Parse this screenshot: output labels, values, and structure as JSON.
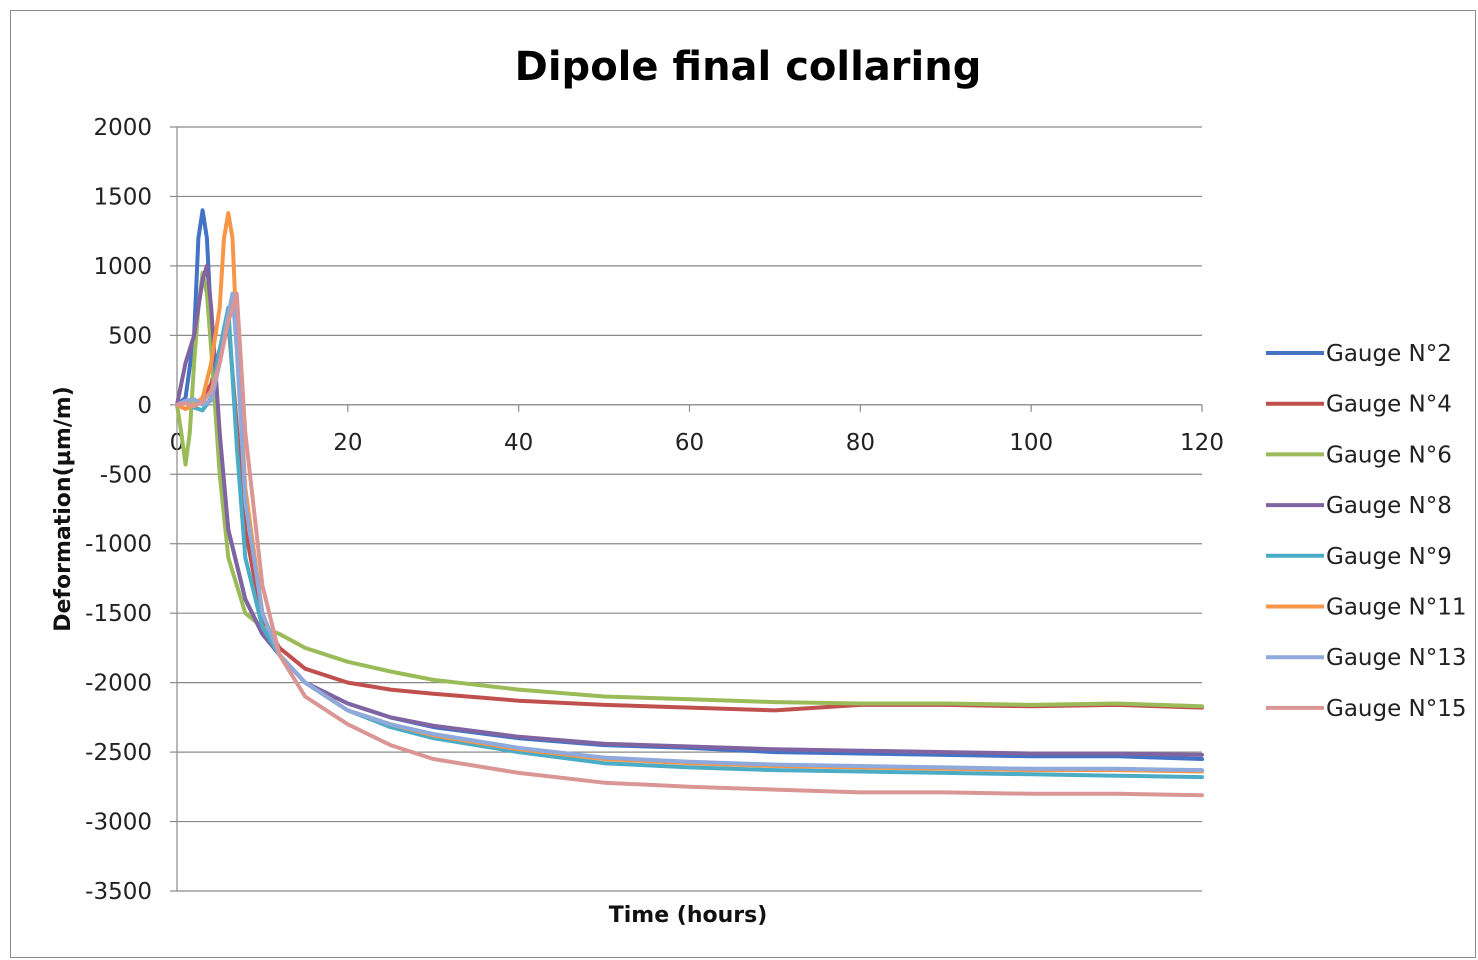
{
  "chart_data": {
    "type": "line",
    "title": "Dipole final collaring",
    "xlabel": "Time (hours)",
    "ylabel": "Deformation(µm/m)",
    "xlim": [
      0,
      120
    ],
    "ylim": [
      -3500,
      2000
    ],
    "xticks": [
      0,
      20,
      40,
      60,
      80,
      100,
      120
    ],
    "yticks": [
      2000,
      1500,
      1000,
      500,
      0,
      -500,
      -1000,
      -1500,
      -2000,
      -2500,
      -3000,
      -3500
    ],
    "grid": "horizontal",
    "legend": "right",
    "series": [
      {
        "name": "Gauge N°2",
        "color": "#4472C4",
        "x": [
          0,
          1,
          2,
          2.5,
          3,
          3.5,
          4,
          5,
          6,
          8,
          10,
          12,
          15,
          20,
          25,
          30,
          40,
          50,
          60,
          70,
          80,
          90,
          100,
          110,
          120
        ],
        "y": [
          0,
          50,
          500,
          1200,
          1400,
          1200,
          600,
          -300,
          -900,
          -1400,
          -1650,
          -1800,
          -2000,
          -2150,
          -2250,
          -2320,
          -2400,
          -2450,
          -2470,
          -2500,
          -2510,
          -2520,
          -2530,
          -2530,
          -2550
        ]
      },
      {
        "name": "Gauge N°4",
        "color": "#C0504D",
        "x": [
          0,
          1,
          2,
          3,
          4,
          5,
          6,
          8,
          10,
          12,
          15,
          20,
          25,
          30,
          40,
          50,
          60,
          70,
          80,
          90,
          100,
          110,
          120
        ],
        "y": [
          0,
          -30,
          0,
          50,
          150,
          400,
          600,
          -900,
          -1550,
          -1750,
          -1900,
          -2000,
          -2050,
          -2080,
          -2130,
          -2160,
          -2180,
          -2200,
          -2160,
          -2160,
          -2170,
          -2160,
          -2180
        ]
      },
      {
        "name": "Gauge N°6",
        "color": "#9BBB59",
        "x": [
          0,
          0.5,
          1,
          1.5,
          2,
          2.5,
          3,
          3.5,
          4,
          5,
          6,
          8,
          10,
          12,
          15,
          20,
          25,
          30,
          40,
          50,
          60,
          70,
          80,
          90,
          100,
          110,
          120
        ],
        "y": [
          0,
          -200,
          -430,
          -200,
          300,
          700,
          950,
          800,
          400,
          -500,
          -1100,
          -1500,
          -1600,
          -1650,
          -1750,
          -1850,
          -1920,
          -1980,
          -2050,
          -2100,
          -2120,
          -2140,
          -2150,
          -2150,
          -2160,
          -2150,
          -2170
        ]
      },
      {
        "name": "Gauge N°8",
        "color": "#8064A2",
        "x": [
          0,
          1,
          2,
          3,
          3.5,
          4,
          5,
          6,
          8,
          10,
          12,
          15,
          20,
          25,
          30,
          40,
          50,
          60,
          70,
          80,
          90,
          100,
          110,
          120
        ],
        "y": [
          0,
          300,
          500,
          900,
          1000,
          700,
          -200,
          -900,
          -1400,
          -1650,
          -1800,
          -2000,
          -2150,
          -2250,
          -2310,
          -2390,
          -2440,
          -2460,
          -2480,
          -2490,
          -2500,
          -2510,
          -2510,
          -2520
        ]
      },
      {
        "name": "Gauge N°9",
        "color": "#4BACC6",
        "x": [
          0,
          1,
          2,
          3,
          4,
          5,
          6,
          7,
          8,
          10,
          12,
          15,
          20,
          25,
          30,
          40,
          50,
          60,
          70,
          80,
          90,
          100,
          110,
          120
        ],
        "y": [
          0,
          20,
          -20,
          -40,
          50,
          400,
          700,
          -300,
          -1100,
          -1600,
          -1800,
          -2000,
          -2200,
          -2320,
          -2400,
          -2500,
          -2580,
          -2610,
          -2630,
          -2640,
          -2650,
          -2660,
          -2670,
          -2680
        ]
      },
      {
        "name": "Gauge N°11",
        "color": "#F79646",
        "x": [
          0,
          1,
          2,
          3,
          4,
          5,
          5.5,
          6,
          6.5,
          7,
          8,
          10,
          12,
          15,
          20,
          25,
          30,
          40,
          50,
          60,
          70,
          80,
          90,
          100,
          110,
          120
        ],
        "y": [
          0,
          -30,
          0,
          50,
          300,
          700,
          1200,
          1380,
          1200,
          500,
          -600,
          -1500,
          -1800,
          -2000,
          -2200,
          -2300,
          -2380,
          -2480,
          -2550,
          -2580,
          -2600,
          -2610,
          -2620,
          -2630,
          -2630,
          -2640
        ]
      },
      {
        "name": "Gauge N°13",
        "color": "#8EA9DB",
        "x": [
          0,
          1,
          2,
          3,
          4,
          5,
          6,
          6.5,
          7,
          8,
          10,
          12,
          15,
          20,
          25,
          30,
          40,
          50,
          60,
          70,
          80,
          90,
          100,
          110,
          120
        ],
        "y": [
          0,
          30,
          40,
          0,
          30,
          300,
          650,
          800,
          400,
          -700,
          -1500,
          -1800,
          -2000,
          -2200,
          -2300,
          -2370,
          -2470,
          -2540,
          -2570,
          -2590,
          -2600,
          -2610,
          -2620,
          -2620,
          -2630
        ]
      },
      {
        "name": "Gauge N°15",
        "color": "#D99694",
        "x": [
          0,
          1,
          2,
          3,
          4,
          5,
          6,
          7,
          8,
          10,
          12,
          15,
          20,
          25,
          30,
          40,
          50,
          60,
          70,
          80,
          90,
          100,
          110,
          120
        ],
        "y": [
          0,
          10,
          -10,
          20,
          100,
          300,
          600,
          800,
          -200,
          -1300,
          -1800,
          -2100,
          -2300,
          -2450,
          -2550,
          -2650,
          -2720,
          -2750,
          -2770,
          -2790,
          -2790,
          -2800,
          -2800,
          -2810
        ]
      }
    ]
  }
}
